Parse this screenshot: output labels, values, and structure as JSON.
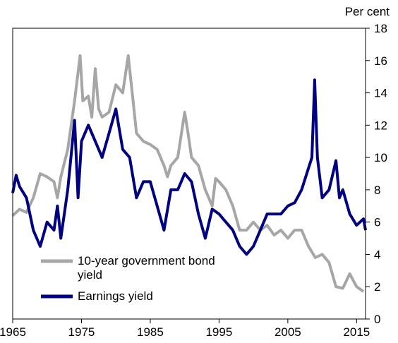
{
  "chart_data": {
    "type": "line",
    "y_label": "Per cent",
    "xlim": [
      1965,
      2016.3
    ],
    "ylim": [
      0,
      18
    ],
    "xticks": [
      1965,
      1975,
      1985,
      1995,
      2005,
      2015
    ],
    "yticks": [
      0,
      2,
      4,
      6,
      8,
      10,
      12,
      14,
      16,
      18
    ],
    "series": [
      {
        "name": "10-year government bond yield",
        "color": "#a6a6a6",
        "x": [
          1965,
          1966,
          1967,
          1968,
          1969,
          1970,
          1971,
          1971.5,
          1972,
          1973,
          1974,
          1974.8,
          1975.2,
          1976,
          1976.5,
          1977,
          1977.5,
          1978,
          1979,
          1980,
          1981,
          1981.8,
          1982.5,
          1983,
          1984,
          1985,
          1986,
          1987,
          1987.5,
          1988,
          1989,
          1990,
          1990.5,
          1991,
          1992,
          1993,
          1994,
          1994.5,
          1995,
          1996,
          1997,
          1998,
          1999,
          2000,
          2001,
          2002,
          2003,
          2004,
          2005,
          2006,
          2007,
          2008,
          2009,
          2010,
          2011,
          2012,
          2013,
          2014,
          2015,
          2016
        ],
        "values": [
          6.4,
          6.8,
          6.6,
          7.5,
          9.0,
          8.8,
          8.5,
          7.5,
          8.8,
          10.5,
          13.5,
          16.3,
          13.5,
          13.8,
          12.5,
          15.5,
          13.0,
          12.5,
          12.8,
          14.5,
          14.0,
          16.3,
          13.5,
          11.5,
          11.0,
          10.8,
          10.5,
          9.5,
          8.8,
          9.5,
          10.0,
          12.8,
          11.5,
          10.0,
          9.5,
          8.0,
          7.0,
          8.7,
          8.5,
          8.0,
          7.0,
          5.5,
          5.5,
          6.0,
          5.5,
          5.8,
          5.2,
          5.5,
          5.0,
          5.5,
          5.5,
          4.5,
          3.8,
          4.0,
          3.5,
          2.0,
          1.9,
          2.8,
          2.0,
          1.7
        ]
      },
      {
        "name": "Earnings yield",
        "color": "#000080",
        "x": [
          1965,
          1965.5,
          1966,
          1967,
          1968,
          1969,
          1970,
          1971,
          1971.5,
          1972,
          1973,
          1974,
          1974.5,
          1975,
          1976,
          1977,
          1978,
          1979,
          1980,
          1981,
          1982,
          1983,
          1984,
          1985,
          1986,
          1987,
          1988,
          1989,
          1990,
          1991,
          1992,
          1993,
          1994,
          1995,
          1996,
          1997,
          1998,
          1999,
          2000,
          2001,
          2002,
          2003,
          2004,
          2005,
          2006,
          2007,
          2008.5,
          2008.9,
          2009.3,
          2010,
          2011,
          2012,
          2012.5,
          2013,
          2014,
          2015,
          2016,
          2016.3
        ],
        "values": [
          7.8,
          8.9,
          8.2,
          7.5,
          5.5,
          4.5,
          6.0,
          5.5,
          7.0,
          5.0,
          8.0,
          12.3,
          7.5,
          11.0,
          12.0,
          11.0,
          10.0,
          11.5,
          13.0,
          10.5,
          10.0,
          7.5,
          8.5,
          8.5,
          7.0,
          5.5,
          8.0,
          8.0,
          9.0,
          8.5,
          6.5,
          5.0,
          6.8,
          6.5,
          6.0,
          5.5,
          4.5,
          4.0,
          4.5,
          5.5,
          6.5,
          6.5,
          6.5,
          7.0,
          7.2,
          8.0,
          10.0,
          14.8,
          10.0,
          7.5,
          8.0,
          9.8,
          7.5,
          8.0,
          6.5,
          5.8,
          6.2,
          5.5
        ]
      }
    ]
  }
}
